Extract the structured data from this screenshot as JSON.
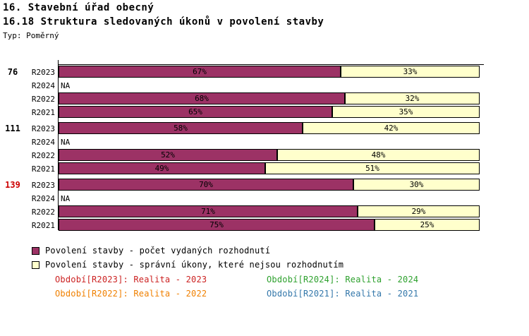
{
  "header": {
    "title_line1": "16. Stavební úřad obecný",
    "title_line2": "16.18 Struktura sledovaných úkonů v povolení stavby",
    "type_label": "Typ: Poměrný"
  },
  "chart_data": {
    "type": "bar",
    "orientation": "horizontal",
    "stacked": true,
    "value_unit": "%",
    "xlim": [
      0,
      100
    ],
    "na_label": "NA",
    "series": [
      {
        "name": "Povolení stavby - počet vydaných rozhodnutí",
        "color": "#9C3265"
      },
      {
        "name": "Povolení stavby - správní úkony, které nejsou rozhodnutím",
        "color": "#FFFFCC"
      }
    ],
    "groups": [
      {
        "label": "76",
        "label_color": "#000000",
        "rows": [
          {
            "period": "R2023",
            "values": [
              67,
              33
            ],
            "labels": [
              "67%",
              "33%"
            ]
          },
          {
            "period": "R2024",
            "values": null,
            "labels": null
          },
          {
            "period": "R2022",
            "values": [
              68,
              32
            ],
            "labels": [
              "68%",
              "32%"
            ]
          },
          {
            "period": "R2021",
            "values": [
              65,
              35
            ],
            "labels": [
              "65%",
              "35%"
            ]
          }
        ]
      },
      {
        "label": "111",
        "label_color": "#000000",
        "rows": [
          {
            "period": "R2023",
            "values": [
              58,
              42
            ],
            "labels": [
              "58%",
              "42%"
            ]
          },
          {
            "period": "R2024",
            "values": null,
            "labels": null
          },
          {
            "period": "R2022",
            "values": [
              52,
              48
            ],
            "labels": [
              "52%",
              "48%"
            ]
          },
          {
            "period": "R2021",
            "values": [
              49,
              51
            ],
            "labels": [
              "49%",
              "51%"
            ]
          }
        ]
      },
      {
        "label": "139",
        "label_color": "#CC0000",
        "rows": [
          {
            "period": "R2023",
            "values": [
              70,
              30
            ],
            "labels": [
              "70%",
              "30%"
            ]
          },
          {
            "period": "R2024",
            "values": null,
            "labels": null
          },
          {
            "period": "R2022",
            "values": [
              71,
              29
            ],
            "labels": [
              "71%",
              "29%"
            ]
          },
          {
            "period": "R2021",
            "values": [
              75,
              25
            ],
            "labels": [
              "75%",
              "25%"
            ]
          }
        ]
      }
    ]
  },
  "legend": {
    "items": [
      {
        "label": "Povolení stavby - počet vydaných rozhodnutí",
        "color": "#9C3265"
      },
      {
        "label": "Povolení stavby - správní úkony, které nejsou rozhodnutím",
        "color": "#FFFFCC"
      }
    ]
  },
  "footer": {
    "items": [
      {
        "text": "Období[R2023]: Realita - 2023",
        "color": "#CC2222"
      },
      {
        "text": "Období[R2024]: Realita - 2024",
        "color": "#2EA12E"
      },
      {
        "text": "Období[R2022]: Realita - 2022",
        "color": "#F08000"
      },
      {
        "text": "Období[R2021]: Realita - 2021",
        "color": "#3377AA"
      }
    ]
  }
}
